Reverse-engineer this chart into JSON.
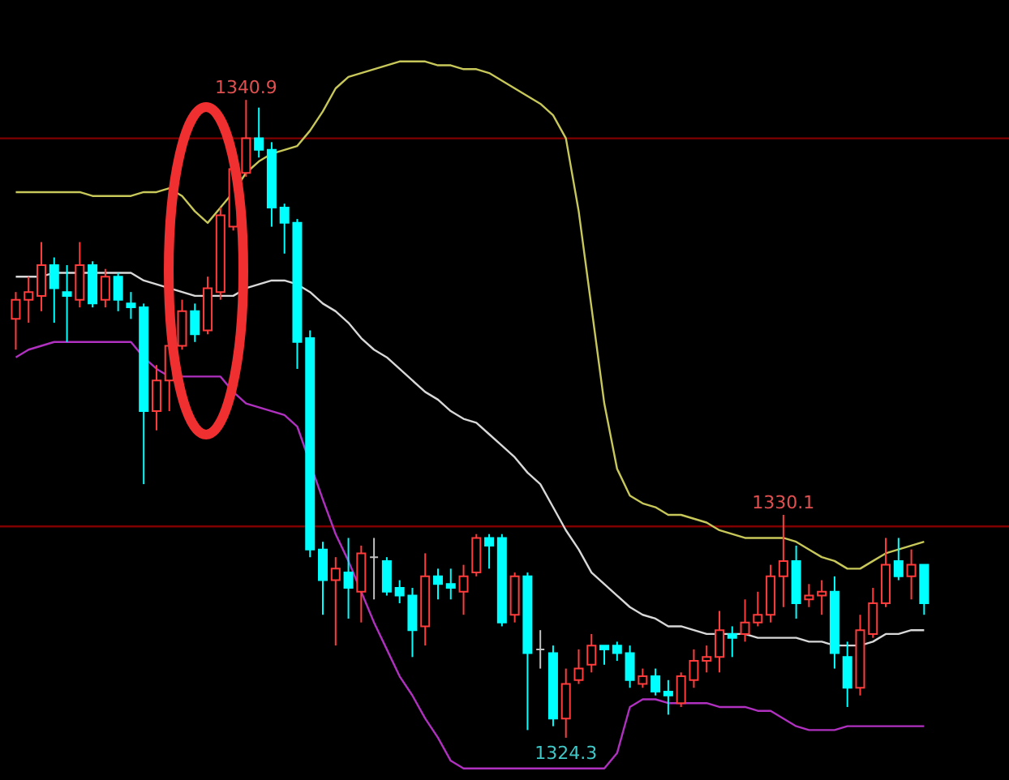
{
  "chart_data": {
    "type": "candlestick",
    "categories": [
      null,
      null,
      null,
      null,
      null,
      null,
      null,
      null,
      null,
      null,
      null,
      null,
      null,
      null,
      null,
      null,
      null,
      null,
      null,
      null,
      null,
      null,
      null,
      null,
      null,
      null,
      null,
      null,
      null,
      null,
      null,
      null,
      null,
      null,
      null,
      null,
      null,
      null,
      null,
      null,
      null,
      null,
      null,
      null,
      null,
      null,
      null,
      null,
      null,
      null,
      null,
      null,
      null,
      null,
      null,
      null,
      null,
      null,
      null,
      null,
      null,
      null,
      null,
      null,
      null,
      null,
      null,
      null,
      null,
      null,
      null,
      null
    ],
    "ohlc": [
      [
        1335.2,
        1335.9,
        1334.4,
        1335.7
      ],
      [
        1335.7,
        1336.3,
        1335.1,
        1335.9
      ],
      [
        1335.8,
        1337.2,
        1335.4,
        1336.6
      ],
      [
        1336.6,
        1336.8,
        1335.1,
        1336.0
      ],
      [
        1335.9,
        1336.6,
        1334.6,
        1335.8
      ],
      [
        1335.7,
        1337.2,
        1335.5,
        1336.6
      ],
      [
        1336.6,
        1336.7,
        1335.5,
        1335.6
      ],
      [
        1335.7,
        1336.5,
        1335.5,
        1336.3
      ],
      [
        1336.3,
        1336.4,
        1335.4,
        1335.7
      ],
      [
        1335.6,
        1335.9,
        1335.2,
        1335.5
      ],
      [
        1335.5,
        1335.6,
        1330.9,
        1332.8
      ],
      [
        1332.8,
        1334.0,
        1332.3,
        1333.6
      ],
      [
        1333.6,
        1334.9,
        1332.8,
        1334.5
      ],
      [
        1334.5,
        1335.7,
        1334.4,
        1335.4
      ],
      [
        1335.4,
        1335.6,
        1334.6,
        1334.8
      ],
      [
        1334.9,
        1336.3,
        1334.8,
        1336.0
      ],
      [
        1335.9,
        1338.1,
        1335.7,
        1337.9
      ],
      [
        1337.6,
        1339.5,
        1337.5,
        1339.1
      ],
      [
        1339.0,
        1340.9,
        1338.9,
        1339.9
      ],
      [
        1339.9,
        1340.7,
        1339.4,
        1339.6
      ],
      [
        1339.6,
        1339.8,
        1337.6,
        1338.1
      ],
      [
        1338.1,
        1338.2,
        1336.9,
        1337.7
      ],
      [
        1337.7,
        1337.8,
        1333.9,
        1334.6
      ],
      [
        1334.7,
        1334.9,
        1329.0,
        1329.2
      ],
      [
        1329.2,
        1329.4,
        1327.5,
        1328.4
      ],
      [
        1328.4,
        1329.0,
        1326.7,
        1328.7
      ],
      [
        1328.6,
        1329.5,
        1327.4,
        1328.2
      ],
      [
        1328.1,
        1329.3,
        1327.3,
        1329.1
      ],
      [
        1329.0,
        1329.5,
        1327.9,
        1329.0
      ],
      [
        1328.9,
        1329.0,
        1328.0,
        1328.1
      ],
      [
        1328.2,
        1328.4,
        1327.8,
        1328.0
      ],
      [
        1328.0,
        1328.2,
        1326.4,
        1327.1
      ],
      [
        1327.2,
        1329.1,
        1326.7,
        1328.5
      ],
      [
        1328.5,
        1328.7,
        1327.9,
        1328.3
      ],
      [
        1328.3,
        1328.7,
        1327.9,
        1328.2
      ],
      [
        1328.1,
        1328.8,
        1327.5,
        1328.5
      ],
      [
        1328.6,
        1329.6,
        1328.5,
        1329.5
      ],
      [
        1329.5,
        1329.6,
        1328.7,
        1329.3
      ],
      [
        1329.5,
        1329.6,
        1327.2,
        1327.3
      ],
      [
        1327.5,
        1328.6,
        1327.3,
        1328.5
      ],
      [
        1328.5,
        1328.6,
        1324.5,
        1326.5
      ],
      [
        1326.6,
        1327.1,
        1326.1,
        1326.6
      ],
      [
        1326.5,
        1326.7,
        1324.6,
        1324.8
      ],
      [
        1324.8,
        1326.1,
        1324.3,
        1325.7
      ],
      [
        1325.8,
        1326.6,
        1325.7,
        1326.1
      ],
      [
        1326.2,
        1327.0,
        1326.0,
        1326.7
      ],
      [
        1326.7,
        1326.7,
        1326.2,
        1326.6
      ],
      [
        1326.7,
        1326.8,
        1326.3,
        1326.5
      ],
      [
        1326.5,
        1326.7,
        1325.6,
        1325.8
      ],
      [
        1325.7,
        1326.1,
        1325.6,
        1325.9
      ],
      [
        1325.9,
        1326.1,
        1325.4,
        1325.5
      ],
      [
        1325.5,
        1325.8,
        1324.9,
        1325.4
      ],
      [
        1325.2,
        1326.0,
        1325.1,
        1325.9
      ],
      [
        1325.8,
        1326.6,
        1325.6,
        1326.3
      ],
      [
        1326.3,
        1326.7,
        1326.0,
        1326.4
      ],
      [
        1326.4,
        1327.6,
        1326.0,
        1327.1
      ],
      [
        1327.0,
        1327.2,
        1326.4,
        1326.9
      ],
      [
        1327.0,
        1327.9,
        1326.8,
        1327.3
      ],
      [
        1327.3,
        1328.1,
        1327.2,
        1327.5
      ],
      [
        1327.5,
        1328.8,
        1327.3,
        1328.5
      ],
      [
        1328.5,
        1330.1,
        1327.7,
        1328.9
      ],
      [
        1328.9,
        1329.3,
        1327.4,
        1327.8
      ],
      [
        1327.9,
        1328.3,
        1327.7,
        1328.0
      ],
      [
        1328.0,
        1328.4,
        1327.5,
        1328.1
      ],
      [
        1328.1,
        1328.5,
        1326.1,
        1326.5
      ],
      [
        1326.4,
        1326.8,
        1325.1,
        1325.6
      ],
      [
        1325.6,
        1327.5,
        1325.4,
        1327.1
      ],
      [
        1327.0,
        1328.2,
        1326.9,
        1327.8
      ],
      [
        1327.8,
        1329.5,
        1327.7,
        1328.8
      ],
      [
        1328.9,
        1329.5,
        1328.4,
        1328.5
      ],
      [
        1328.5,
        1329.2,
        1327.9,
        1328.8
      ],
      [
        1328.8,
        1328.8,
        1327.5,
        1327.8
      ]
    ],
    "colors": [
      "#ff3c3c",
      "#ff3c3c",
      "#ff3c3c",
      "#00ffff",
      "#00ffff",
      "#ff3c3c",
      "#00ffff",
      "#ff3c3c",
      "#00ffff",
      "#00ffff",
      "#00ffff",
      "#ff3c3c",
      "#ff3c3c",
      "#ff3c3c",
      "#00ffff",
      "#ff3c3c",
      "#ff3c3c",
      "#ff3c3c",
      "#ff3c3c",
      "#00ffff",
      "#00ffff",
      "#00ffff",
      "#00ffff",
      "#00ffff",
      "#00ffff",
      "#ff3c3c",
      "#00ffff",
      "#ff3c3c",
      "#c0c0c0",
      "#00ffff",
      "#00ffff",
      "#00ffff",
      "#ff3c3c",
      "#00ffff",
      "#00ffff",
      "#ff3c3c",
      "#ff3c3c",
      "#00ffff",
      "#00ffff",
      "#ff3c3c",
      "#00ffff",
      "#c0c0c0",
      "#00ffff",
      "#ff3c3c",
      "#ff3c3c",
      "#ff3c3c",
      "#00ffff",
      "#00ffff",
      "#00ffff",
      "#ff3c3c",
      "#00ffff",
      "#00ffff",
      "#ff3c3c",
      "#ff3c3c",
      "#ff3c3c",
      "#ff3c3c",
      "#00ffff",
      "#ff3c3c",
      "#ff3c3c",
      "#ff3c3c",
      "#ff3c3c",
      "#00ffff",
      "#ff3c3c",
      "#ff3c3c",
      "#00ffff",
      "#00ffff",
      "#ff3c3c",
      "#ff3c3c",
      "#ff3c3c",
      "#00ffff",
      "#ff3c3c",
      "#00ffff"
    ],
    "series": [
      {
        "type": "line",
        "color": "#c8c85a",
        "values": [
          1338.5,
          1338.5,
          1338.5,
          1338.5,
          1338.5,
          1338.5,
          1338.4,
          1338.4,
          1338.4,
          1338.4,
          1338.5,
          1338.5,
          1338.6,
          1338.4,
          1338.0,
          1337.7,
          1338.1,
          1338.5,
          1339.0,
          1339.3,
          1339.5,
          1339.6,
          1339.7,
          1340.1,
          1340.6,
          1341.2,
          1341.5,
          1341.6,
          1341.7,
          1341.8,
          1341.9,
          1341.9,
          1341.9,
          1341.8,
          1341.8,
          1341.7,
          1341.7,
          1341.6,
          1341.4,
          1341.2,
          1341.0,
          1340.8,
          1340.5,
          1339.9,
          1338.0,
          1335.5,
          1333.0,
          1331.3,
          1330.6,
          1330.4,
          1330.3,
          1330.1,
          1330.1,
          1330.0,
          1329.9,
          1329.7,
          1329.6,
          1329.5,
          1329.5,
          1329.5,
          1329.5,
          1329.4,
          1329.2,
          1329.0,
          1328.9,
          1328.7,
          1328.7,
          1328.9,
          1329.1,
          1329.2,
          1329.3,
          1329.4
        ]
      },
      {
        "type": "line",
        "color": "#d8d8d8",
        "values": [
          1336.3,
          1336.3,
          1336.3,
          1336.4,
          1336.4,
          1336.4,
          1336.4,
          1336.4,
          1336.4,
          1336.4,
          1336.2,
          1336.1,
          1336.0,
          1335.9,
          1335.8,
          1335.8,
          1335.8,
          1335.8,
          1336.0,
          1336.1,
          1336.2,
          1336.2,
          1336.1,
          1335.9,
          1335.6,
          1335.4,
          1335.1,
          1334.7,
          1334.4,
          1334.2,
          1333.9,
          1333.6,
          1333.3,
          1333.1,
          1332.8,
          1332.6,
          1332.5,
          1332.2,
          1331.9,
          1331.6,
          1331.2,
          1330.9,
          1330.3,
          1329.7,
          1329.2,
          1328.6,
          1328.3,
          1328.0,
          1327.7,
          1327.5,
          1327.4,
          1327.2,
          1327.2,
          1327.1,
          1327.0,
          1327.0,
          1327.0,
          1327.0,
          1326.9,
          1326.9,
          1326.9,
          1326.9,
          1326.8,
          1326.8,
          1326.7,
          1326.7,
          1326.7,
          1326.8,
          1327.0,
          1327.0,
          1327.1,
          1327.1
        ]
      },
      {
        "type": "line",
        "color": "#b030c0",
        "values": [
          1334.2,
          1334.4,
          1334.5,
          1334.6,
          1334.6,
          1334.6,
          1334.6,
          1334.6,
          1334.6,
          1334.6,
          1334.2,
          1333.9,
          1333.7,
          1333.7,
          1333.7,
          1333.7,
          1333.7,
          1333.3,
          1333.0,
          1332.9,
          1332.8,
          1332.7,
          1332.4,
          null,
          1330.5,
          1329.6,
          1328.9,
          1328.1,
          1327.3,
          1326.6,
          1325.9,
          1325.4,
          1324.8,
          1324.3,
          1323.7,
          1323.5,
          1323.5,
          1323.5,
          1323.5,
          1323.5,
          1323.5,
          1323.5,
          1323.5,
          1323.5,
          1323.5,
          1323.5,
          1323.5,
          1323.9,
          1325.1,
          1325.3,
          1325.3,
          1325.2,
          1325.2,
          1325.2,
          1325.2,
          1325.1,
          1325.1,
          1325.1,
          1325.0,
          1325.0,
          1324.8,
          1324.6,
          1324.5,
          1324.5,
          1324.5,
          1324.6,
          1324.6,
          1324.6,
          1324.6,
          1324.6,
          1324.6,
          1324.6
        ]
      }
    ],
    "ref_lines": [
      {
        "axis": "y",
        "value": 1339.9,
        "color": "#800000"
      },
      {
        "axis": "y",
        "value": 1329.8,
        "color": "#800000"
      }
    ],
    "annotations": [
      {
        "text": "1340.9",
        "y": 1340.9
      },
      {
        "text": "1330.1",
        "y": 1330.1
      },
      {
        "text": "1324.3",
        "y": 1324.3
      }
    ],
    "ylim": [
      1323.2,
      1343.5
    ],
    "tick_labels": false
  }
}
